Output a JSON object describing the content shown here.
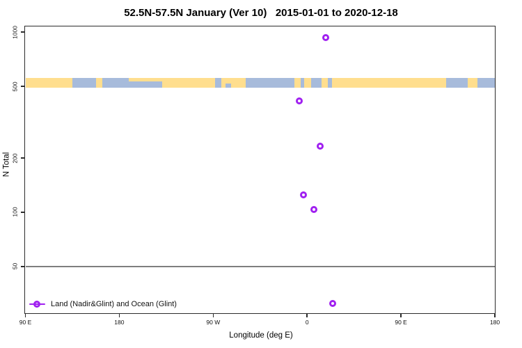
{
  "figure": {
    "title": "52.5N-57.5N January (Ver 10)   2015-01-01 to 2020-12-18"
  },
  "chart_data": {
    "type": "scatter",
    "title": "52.5N-57.5N January (Ver 10)   2015-01-01 to 2020-12-18",
    "xlabel": "Longitude (deg E)",
    "ylabel": "N Total",
    "x_axis": {
      "note": "longitude wraps eastward: 90E to 180 to 90W to 0 to 90E to 180",
      "range_display": [
        90,
        540
      ],
      "ticks": [
        {
          "pos": 90,
          "label": "90 E"
        },
        {
          "pos": 180,
          "label": "180"
        },
        {
          "pos": 270,
          "label": "90 W"
        },
        {
          "pos": 360,
          "label": "0"
        },
        {
          "pos": 450,
          "label": "90 E"
        },
        {
          "pos": 540,
          "label": "180"
        }
      ]
    },
    "y_axis": {
      "scale": "log",
      "range": [
        27.5,
        1075
      ],
      "ticks": [
        {
          "value": 1000,
          "label": "1000"
        },
        {
          "value": 500,
          "label": "500"
        },
        {
          "value": 200,
          "label": "200"
        },
        {
          "value": 100,
          "label": "100"
        },
        {
          "value": 50,
          "label": "50"
        }
      ],
      "grid": false
    },
    "reference_line": {
      "value": 50,
      "color": "#7e7e7e"
    },
    "series": [
      {
        "name": "Land (Nadir&Glint) and Ocean (Glint)",
        "marker": "open-circle",
        "color": "#A020F0",
        "points": [
          {
            "lon_deg_e": 18,
            "lon_display": 378,
            "n_total": 930
          },
          {
            "lon_deg_e": -7.5,
            "lon_display": 352.5,
            "n_total": 415
          },
          {
            "lon_deg_e": 13,
            "lon_display": 373,
            "n_total": 231
          },
          {
            "lon_deg_e": -3.5,
            "lon_display": 356.5,
            "n_total": 124
          },
          {
            "lon_deg_e": 7,
            "lon_display": 367,
            "n_total": 103
          },
          {
            "lon_deg_e": 25,
            "lon_display": 385,
            "n_total": 31
          }
        ]
      }
    ],
    "surface_band": {
      "value_center": 500,
      "land_color": "#FFDE8E",
      "ocean_color": "#A7BBDB",
      "segments": [
        {
          "from": 90,
          "to": 135,
          "surface": "land"
        },
        {
          "from": 135,
          "to": 158,
          "surface": "ocean"
        },
        {
          "from": 158,
          "to": 164,
          "surface": "land"
        },
        {
          "from": 164,
          "to": 221,
          "surface": "ocean"
        },
        {
          "from": 221,
          "to": 272,
          "surface": "land"
        },
        {
          "from": 272,
          "to": 278,
          "surface": "ocean"
        },
        {
          "from": 278,
          "to": 301,
          "surface": "land"
        },
        {
          "from": 301,
          "to": 348,
          "surface": "ocean"
        },
        {
          "from": 348,
          "to": 354,
          "surface": "land"
        },
        {
          "from": 354,
          "to": 357,
          "surface": "ocean"
        },
        {
          "from": 357,
          "to": 364,
          "surface": "land"
        },
        {
          "from": 364,
          "to": 374,
          "surface": "ocean"
        },
        {
          "from": 374,
          "to": 380,
          "surface": "land"
        },
        {
          "from": 380,
          "to": 384,
          "surface": "ocean"
        },
        {
          "from": 384,
          "to": 493,
          "surface": "land"
        },
        {
          "from": 493,
          "to": 514,
          "surface": "ocean"
        },
        {
          "from": 514,
          "to": 523,
          "surface": "land"
        },
        {
          "from": 523,
          "to": 540,
          "surface": "ocean"
        }
      ],
      "overlays": [
        {
          "from": 189,
          "to": 221,
          "surface": "land",
          "row": "top"
        },
        {
          "from": 282,
          "to": 287,
          "surface": "ocean",
          "row": "bottom"
        },
        {
          "from": 329,
          "to": 334,
          "surface": "ocean",
          "row": "bottom"
        }
      ]
    },
    "legend": {
      "label": "Land (Nadir&Glint) and Ocean (Glint)",
      "position": "bottom-left-inside"
    }
  }
}
